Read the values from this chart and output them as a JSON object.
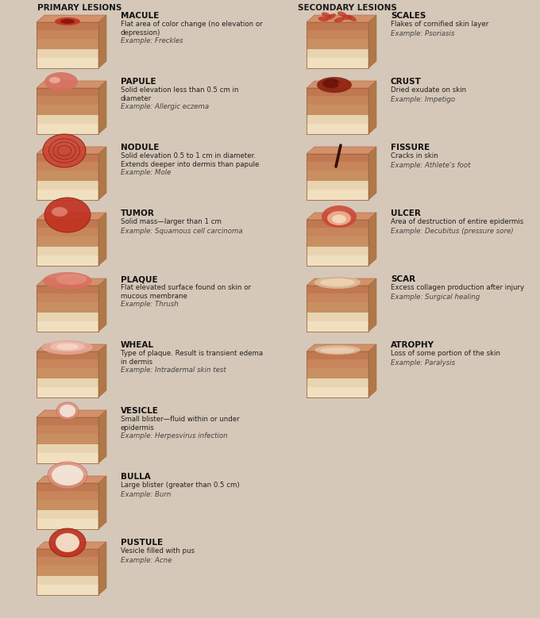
{
  "bg_color": "#d6c8b8",
  "title_left": "PRIMARY LESIONS",
  "title_right": "SECONDARY LESIONS",
  "title_color": "#1a1a1a",
  "title_fontsize": 7.5,
  "name_fontsize": 7.5,
  "desc_fontsize": 6.2,
  "example_fontsize": 6.2,
  "name_color": "#111111",
  "desc_color": "#222222",
  "example_color": "#444444",
  "primary": [
    {
      "name": "MACULE",
      "desc": "Flat area of color change (no elevation or\ndepression)",
      "example": "Example: Freckles",
      "lesion_type": "macule"
    },
    {
      "name": "PAPULE",
      "desc": "Solid elevation less than 0.5 cm in\ndiameter",
      "example": "Example: Allergic eczema",
      "lesion_type": "papule"
    },
    {
      "name": "NODULE",
      "desc": "Solid elevation 0.5 to 1 cm in diameter.\nExtends deeper into dermis than papule",
      "example": "Example: Mole",
      "lesion_type": "nodule"
    },
    {
      "name": "TUMOR",
      "desc": "Solid mass—larger than 1 cm",
      "example": "Example: Squamous cell carcinoma",
      "lesion_type": "tumor"
    },
    {
      "name": "PLAQUE",
      "desc": "Flat elevated surface found on skin or\nmucous membrane",
      "example": "Example: Thrush",
      "lesion_type": "plaque"
    },
    {
      "name": "WHEAL",
      "desc": "Type of plaque. Result is transient edema\nin dermis",
      "example": "Example: Intradermal skin test",
      "lesion_type": "wheal"
    },
    {
      "name": "VESICLE",
      "desc": "Small blister—fluid within or under\nepidermis",
      "example": "Example: Herpesvirus infection",
      "lesion_type": "vesicle"
    },
    {
      "name": "BULLA",
      "desc": "Large blister (greater than 0.5 cm)",
      "example": "Example: Burn",
      "lesion_type": "bulla"
    },
    {
      "name": "PUSTULE",
      "desc": "Vesicle filled with pus",
      "example": "Example: Acne",
      "lesion_type": "pustule"
    }
  ],
  "secondary": [
    {
      "name": "SCALES",
      "desc": "Flakes of cornified skin layer",
      "example": "Example: Psoriasis",
      "lesion_type": "scales"
    },
    {
      "name": "CRUST",
      "desc": "Dried exudate on skin",
      "example": "Example: Impetigo",
      "lesion_type": "crust"
    },
    {
      "name": "FISSURE",
      "desc": "Cracks in skin",
      "example": "Example: Athlete's foot",
      "lesion_type": "fissure"
    },
    {
      "name": "ULCER",
      "desc": "Area of destruction of entire epidermis",
      "example": "Example: Decubitus (pressure sore)",
      "lesion_type": "ulcer"
    },
    {
      "name": "SCAR",
      "desc": "Excess collagen production after injury",
      "example": "Example: Surgical healing",
      "lesion_type": "scar"
    },
    {
      "name": "ATROPHY",
      "desc": "Loss of some portion of the skin",
      "example": "Example: Paralysis",
      "lesion_type": "atrophy"
    }
  ],
  "skin_top": "#d4906a",
  "skin_upper": "#c07850",
  "skin_mid": "#c8845a",
  "skin_lower": "#c89060",
  "skin_sub": "#e8d4b0",
  "skin_sub2": "#f0e0c0",
  "lesion_red": "#c03020",
  "lesion_red2": "#cc4433",
  "lesion_pink": "#d87060",
  "lesion_light": "#f0b0a0",
  "lesion_white": "#f5ece0",
  "block_edge": "#a06840"
}
